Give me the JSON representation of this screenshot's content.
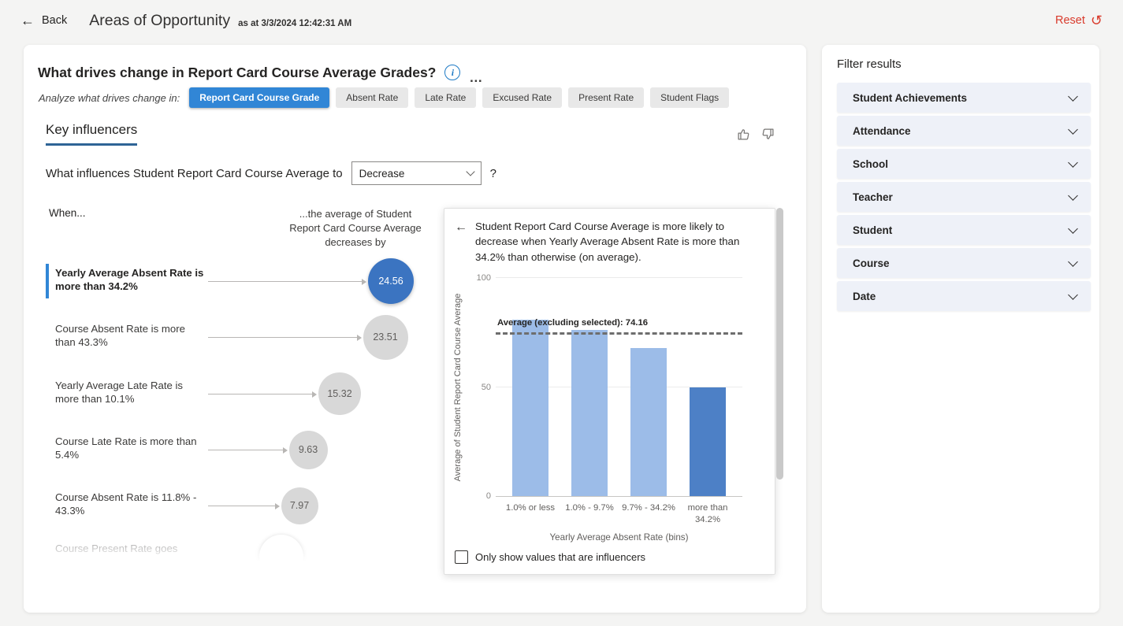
{
  "colors": {
    "accent_blue": "#3186d6",
    "tab_underline": "#2e6496",
    "bubble_selected": "#3b74c1",
    "bubble_default": "#d8d8d8",
    "reset_red": "#d93a2b",
    "info_blue": "#1d7ac5"
  },
  "icons": {
    "back": "←",
    "undo": "↺",
    "info": "i",
    "ellipsis": "…",
    "detail_back": "←"
  },
  "header": {
    "back_label": "Back",
    "title": "Areas of Opportunity",
    "timestamp": "as at 3/3/2024 12:42:31 AM",
    "reset_label": "Reset"
  },
  "main": {
    "question_title": "What drives change in Report Card Course Average Grades?",
    "analyze_label": "Analyze what drives change in:",
    "metric_tabs": [
      {
        "label": "Report Card Course Grade",
        "selected": true
      },
      {
        "label": "Absent Rate",
        "selected": false
      },
      {
        "label": "Late Rate",
        "selected": false
      },
      {
        "label": "Excused Rate",
        "selected": false
      },
      {
        "label": "Present Rate",
        "selected": false
      },
      {
        "label": "Student Flags",
        "selected": false
      }
    ],
    "tab_key_influencers": "Key influencers",
    "influence_question_prefix": "What influences Student Report Card Course Average to",
    "influence_dropdown_value": "Decrease",
    "influence_question_suffix": "?",
    "when_label": "When...",
    "effect_label": "...the average of Student Report Card Course Average decreases by",
    "influencers": [
      {
        "text": "Yearly Average Absent Rate is more than 34.2%",
        "value": "24.56",
        "selected": true,
        "partial": false
      },
      {
        "text": "Course Absent Rate is more than 43.3%",
        "value": "23.51",
        "selected": false,
        "partial": false
      },
      {
        "text": "Yearly Average Late Rate is more than 10.1%",
        "value": "15.32",
        "selected": false,
        "partial": false
      },
      {
        "text": "Course Late Rate is more than 5.4%",
        "value": "9.63",
        "selected": false,
        "partial": false
      },
      {
        "text": "Course Absent Rate is 11.8% - 43.3%",
        "value": "7.97",
        "selected": false,
        "partial": false
      },
      {
        "text": "Course Present Rate goes",
        "value": "",
        "selected": false,
        "partial": true
      }
    ],
    "detail": {
      "description": "Student Report Card Course Average is more likely to decrease when Yearly Average Absent Rate is more than 34.2% than otherwise (on average).",
      "checkbox_label": "Only show values that are influencers",
      "checkbox_checked": false
    }
  },
  "chart_data": {
    "type": "bar",
    "categories": [
      "1.0% or less",
      "1.0% - 9.7%",
      "9.7% - 34.2%",
      "more than 34.2%"
    ],
    "values": [
      81,
      76,
      68,
      50
    ],
    "highlight_index": 3,
    "colors": {
      "normal": "#9cbce8",
      "highlight": "#4d80c6"
    },
    "title": "",
    "xlabel": "Yearly Average Absent Rate (bins)",
    "ylabel": "Average of Student Report Card Course Average",
    "ylim": [
      0,
      100
    ],
    "yticks": [
      0,
      50,
      100
    ],
    "grid": true,
    "reference_line": {
      "label": "Average (excluding selected): 74.16",
      "value": 74.16
    }
  },
  "filters": {
    "title": "Filter results",
    "items": [
      "Student Achievements",
      "Attendance",
      "School",
      "Teacher",
      "Student",
      "Course",
      "Date"
    ]
  }
}
